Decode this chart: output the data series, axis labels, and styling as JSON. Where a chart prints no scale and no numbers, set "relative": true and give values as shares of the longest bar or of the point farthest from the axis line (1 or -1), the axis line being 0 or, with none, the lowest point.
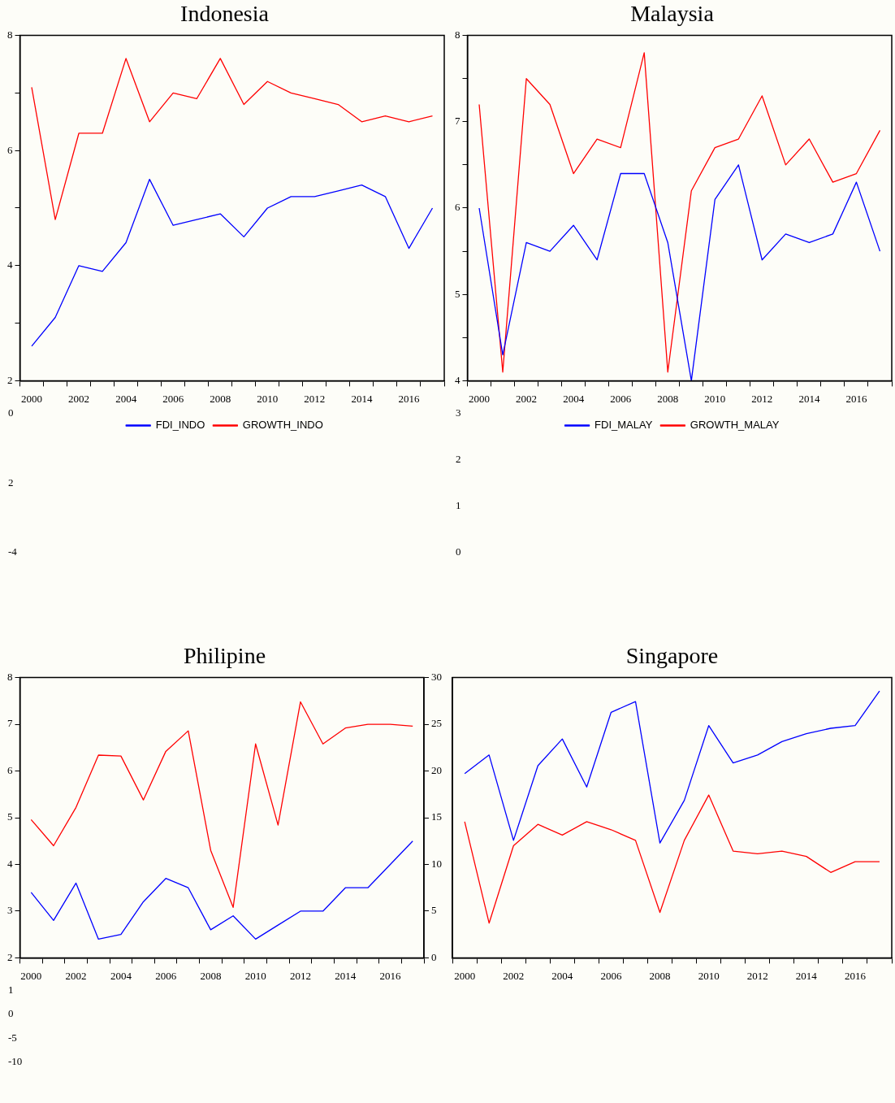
{
  "chart_data": [
    {
      "type": "line",
      "title": "Indonesia",
      "categories": [
        "2000",
        null,
        "2002",
        null,
        "2004",
        null,
        "2006",
        null,
        "2008",
        null,
        "2010",
        null,
        "2012",
        null,
        "2014",
        null,
        "2016",
        null
      ],
      "series": [
        {
          "name": "FDI_INDO",
          "color": "#0000ff",
          "values": [
            2.6,
            3.1,
            4.0,
            3.9,
            4.4,
            5.5,
            4.7,
            4.8,
            4.9,
            4.5,
            5.0,
            5.2,
            5.2,
            5.3,
            5.4,
            5.2,
            4.3,
            5.0
          ]
        },
        {
          "name": "GROWTH_INDO",
          "color": "#ff0000",
          "values": [
            7.1,
            4.8,
            6.3,
            6.3,
            7.6,
            6.5,
            7.0,
            6.9,
            7.6,
            6.8,
            7.2,
            7.0,
            6.9,
            6.8,
            6.5,
            6.6,
            6.5,
            6.6
          ]
        }
      ],
      "ylim": [
        2,
        8
      ],
      "yticks": [
        2,
        {
          "value": 3,
          "label": null
        },
        4,
        {
          "value": 5,
          "label": null
        },
        6,
        {
          "value": 7,
          "label": null
        },
        8
      ],
      "grid": false,
      "legend": "bottom",
      "annotations": [
        "0",
        "2",
        "-4"
      ]
    },
    {
      "type": "line",
      "title": "Malaysia",
      "categories": [
        "2000",
        null,
        "2002",
        null,
        "2004",
        null,
        "2006",
        null,
        "2008",
        null,
        "2010",
        null,
        "2012",
        null,
        "2014",
        null,
        "2016",
        null
      ],
      "series": [
        {
          "name": "FDI_MALAY",
          "color": "#0000ff",
          "values": [
            6.0,
            4.3,
            5.6,
            5.5,
            5.8,
            5.4,
            6.4,
            6.4,
            5.6,
            4.0,
            6.1,
            6.5,
            5.4,
            5.7,
            5.6,
            5.7,
            6.3,
            5.5
          ]
        },
        {
          "name": "GROWTH_MALAY",
          "color": "#ff0000",
          "values": [
            7.2,
            4.1,
            7.5,
            7.2,
            6.4,
            6.8,
            6.7,
            7.8,
            4.1,
            6.2,
            6.7,
            6.8,
            7.3,
            6.5,
            6.8,
            6.3,
            6.4,
            6.9
          ]
        }
      ],
      "ylim": [
        4,
        8
      ],
      "yticks": [
        4,
        {
          "value": 4.5,
          "label": null
        },
        5,
        {
          "value": 5.5,
          "label": null
        },
        6,
        {
          "value": 6.5,
          "label": null
        },
        7,
        {
          "value": 7.5,
          "label": null
        },
        8
      ],
      "grid": false,
      "legend": "bottom",
      "annotations": [
        "3",
        "2",
        "1",
        "0"
      ]
    },
    {
      "type": "line",
      "title": "Philipine",
      "categories": [
        "2000",
        null,
        "2002",
        null,
        "2004",
        null,
        "2006",
        null,
        "2008",
        null,
        "2010",
        null,
        "2012",
        null,
        "2014",
        null,
        "2016",
        null
      ],
      "series": [
        {
          "color": "#0000ff",
          "values": [
            3.4,
            2.8,
            3.6,
            2.4,
            2.5,
            3.2,
            3.7,
            3.5,
            2.6,
            2.9,
            2.4,
            2.7,
            3.0,
            3.0,
            3.5,
            3.5,
            4.0,
            4.5
          ]
        },
        {
          "color": "#ff0000",
          "axis": "y2",
          "values": [
            14.8,
            12.0,
            16.1,
            21.7,
            21.6,
            16.9,
            22.1,
            24.3,
            11.5,
            5.4,
            22.9,
            14.2,
            27.4,
            22.9,
            24.6,
            25.0,
            25.0,
            24.8
          ]
        }
      ],
      "ylim": [
        2,
        8
      ],
      "yticks": [
        2,
        3,
        4,
        5,
        6,
        7,
        8
      ],
      "y2lim": [
        0,
        30
      ],
      "y2ticks": [
        0,
        5,
        10,
        15,
        20,
        25,
        30
      ],
      "grid": false,
      "annotations": [
        "1",
        "0",
        "-5",
        "-10"
      ]
    },
    {
      "type": "line",
      "title": "Singapore",
      "relative": true,
      "categories": [
        "2000",
        null,
        "2002",
        null,
        "2004",
        null,
        "2006",
        null,
        "2008",
        null,
        "2010",
        null,
        "2012",
        null,
        "2014",
        null,
        "2016",
        null
      ],
      "series": [
        {
          "color": "#0000ff",
          "values": [
            0.69,
            0.76,
            0.44,
            0.72,
            0.82,
            0.64,
            0.92,
            0.96,
            0.43,
            0.59,
            0.87,
            0.73,
            0.76,
            0.81,
            0.84,
            0.86,
            0.87,
            1
          ]
        },
        {
          "color": "#ff0000",
          "values": [
            0.51,
            0.13,
            0.42,
            0.5,
            0.46,
            0.51,
            0.48,
            0.44,
            0.17,
            0.44,
            0.61,
            0.4,
            0.39,
            0.4,
            0.38,
            0.32,
            0.36,
            0.36
          ]
        }
      ],
      "grid": false
    }
  ]
}
